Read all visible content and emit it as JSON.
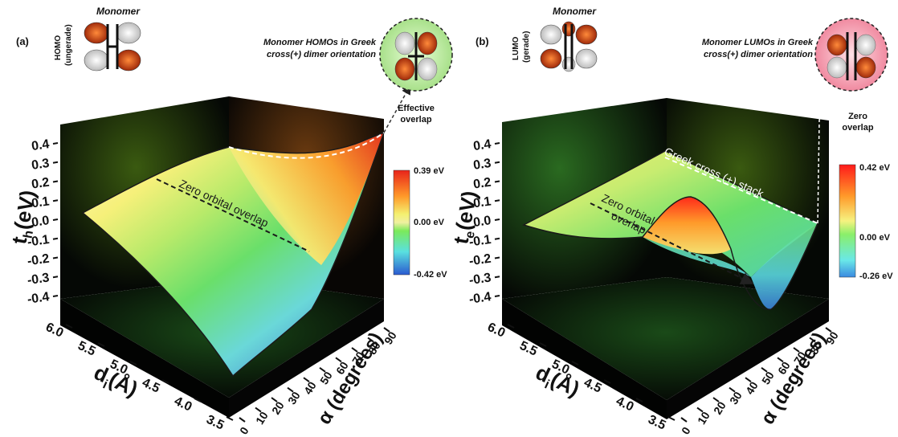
{
  "panels": [
    {
      "panel_label": "(a)",
      "monomer_label": "Monomer",
      "orbital_label_line1": "HOMO",
      "orbital_label_line2": "(ungerade)",
      "callout_line1": "Monomer HOMOs in Greek",
      "callout_line2": "cross(+) dimer orientation",
      "overlap_line1": "Effective",
      "overlap_line2": "overlap",
      "annotation_zero": "Zero orbital overlap",
      "colorbar": {
        "max": "0.39 eV",
        "mid": "0.00 eV",
        "min": "-0.42 eV"
      },
      "callout_bg": "#c8f0b0",
      "accent": "#ff3a1a"
    },
    {
      "panel_label": "(b)",
      "monomer_label": "Monomer",
      "orbital_label_line1": "LUMO",
      "orbital_label_line2": "(gerade)",
      "callout_line1": "Monomer LUMOs in Greek",
      "callout_line2": "cross(+) dimer orientation",
      "overlap_line1": "Zero",
      "overlap_line2": "overlap",
      "annotation_zero_line1": "Zero orbital",
      "annotation_zero_line2": "overlap",
      "annotation_stack": "Greek cross (+) stack",
      "colorbar": {
        "max": "0.42 eV",
        "mid": "0.00 eV",
        "min": "-0.26 eV"
      },
      "callout_bg": "#f7b0c0",
      "accent": "#ff2a2a"
    }
  ],
  "chart_data": [
    {
      "type": "surface",
      "z_label": "t",
      "z_sub": "h",
      "z_unit": "(eV)",
      "z_ticks": [
        "0.4",
        "0.3",
        "0.2",
        "0.1",
        "0.0",
        "-0.1",
        "-0.2",
        "-0.3",
        "-0.4"
      ],
      "x_label": "d",
      "x_sub": "i",
      "x_unit": "(Å)",
      "x_ticks": [
        "6.0",
        "5.5",
        "5.0",
        "4.5",
        "4.0",
        "3.5"
      ],
      "y_label": "α (degrees)",
      "y_ticks": [
        "0",
        "10",
        "20",
        "30",
        "40",
        "50",
        "60",
        "70",
        "80",
        "90"
      ],
      "color_range": [
        -0.42,
        0.39
      ]
    },
    {
      "type": "surface",
      "z_label": "t",
      "z_sub": "e",
      "z_unit": "(eV)",
      "z_ticks": [
        "0.4",
        "0.3",
        "0.2",
        "0.1",
        "0.0",
        "-0.1",
        "-0.2",
        "-0.3",
        "-0.4"
      ],
      "x_label": "d",
      "x_sub": "i",
      "x_unit": "(Å)",
      "x_ticks": [
        "6.0",
        "5.5",
        "5.0",
        "4.5",
        "4.0",
        "3.5"
      ],
      "y_label": "α (degrees)",
      "y_ticks": [
        "0",
        "10",
        "20",
        "30",
        "40",
        "50",
        "60",
        "70",
        "80",
        "90"
      ],
      "color_range": [
        -0.26,
        0.42
      ]
    }
  ]
}
